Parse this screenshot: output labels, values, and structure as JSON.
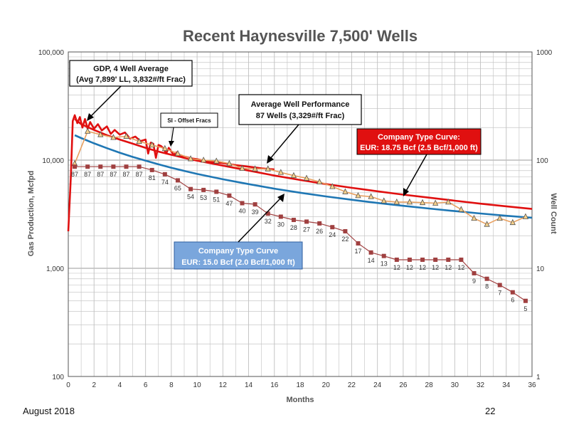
{
  "footer": {
    "date": "August 2018",
    "page": "22"
  },
  "annotations": {
    "gdp_line1": "GDP, 4 Well Average",
    "gdp_line2": "(Avg 7,899' LL, 3,832#/ft Frac)",
    "si": "SI - Offset Fracs",
    "avg_line1": "Average Well Performance",
    "avg_line2": "87 Wells (3,329#/ft Frac)",
    "tc_red_line1": "Company Type Curve:",
    "tc_red_line2": "EUR: 18.75 Bcf (2.5 Bcf/1,000 ft)",
    "tc_blue_line1": "Company Type Curve",
    "tc_blue_line2": "EUR: 15.0 Bcf (2.0 Bcf/1,000 ft)"
  },
  "colors": {
    "gdp": "#e01010",
    "type_red": "#e01010",
    "type_blue": "#1f77b4",
    "avg": "#e8a060",
    "well_count": "#a04040",
    "box_red": "#e01010",
    "box_blue": "#6f9fd8"
  },
  "chart_data": {
    "type": "line",
    "title": "Recent Haynesville 7,500' Wells",
    "xlabel": "Months",
    "ylabel": "Gas Production, Mcfpd",
    "y2label": "Well Count",
    "xlim": [
      0,
      36
    ],
    "ylim": [
      100,
      100000
    ],
    "y2lim": [
      1,
      1000
    ],
    "y_scale": "log",
    "y2_scale": "log",
    "grid": true,
    "x_ticks": [
      "0",
      "2",
      "4",
      "6",
      "8",
      "10",
      "12",
      "14",
      "16",
      "18",
      "20",
      "22",
      "24",
      "26",
      "28",
      "30",
      "32",
      "34",
      "36"
    ],
    "y_ticks": [
      "100",
      "1,000",
      "10,000",
      "100,000"
    ],
    "y2_ticks": [
      "1",
      "10",
      "100",
      "1000"
    ],
    "series": [
      {
        "name": "GDP, 4 Well Average",
        "axis": "left",
        "color": "#e01010",
        "x": [
          0,
          0.2,
          0.35,
          0.5,
          0.7,
          0.9,
          1.1,
          1.3,
          1.5,
          1.7,
          2,
          2.3,
          2.6,
          3,
          3.3,
          3.6,
          4,
          4.4,
          4.8,
          5.2,
          5.6,
          6,
          6.2,
          6.4,
          6.6,
          6.8,
          7,
          7.2,
          7.4,
          7.6,
          7.8,
          8,
          8.2,
          8.4,
          8.6,
          9,
          9.5,
          10,
          10.5,
          11,
          11.5,
          12,
          12.5,
          13,
          13.5,
          14,
          14.5,
          15,
          15.5,
          16
        ],
        "y": [
          2200,
          7000,
          23000,
          26000,
          22000,
          25000,
          20000,
          24000,
          19500,
          22500,
          19500,
          21500,
          18800,
          20500,
          17500,
          19000,
          17200,
          18000,
          15800,
          16500,
          15000,
          15500,
          11500,
          14500,
          14200,
          10500,
          13800,
          13500,
          12800,
          11500,
          13000,
          12000,
          11200,
          11800,
          10800,
          10800,
          10400,
          10200,
          9900,
          9700,
          9500,
          9400,
          9200,
          9000,
          8850,
          8700,
          8550,
          8400,
          8300,
          8200
        ]
      },
      {
        "name": "Company Type Curve: EUR: 18.75 Bcf (2.5 Bcf/1,000 ft)",
        "axis": "left",
        "color": "#e01010",
        "x": [
          0.5,
          1,
          2,
          3,
          4,
          5,
          6,
          7,
          8,
          9,
          10,
          12,
          14,
          16,
          18,
          20,
          22,
          24,
          26,
          28,
          30,
          32,
          34,
          36
        ],
        "y": [
          24000,
          21500,
          19000,
          17000,
          15500,
          14200,
          13000,
          12000,
          11200,
          10500,
          9900,
          8900,
          8000,
          7200,
          6550,
          6000,
          5550,
          5150,
          4800,
          4500,
          4220,
          3960,
          3740,
          3540
        ]
      },
      {
        "name": "Company Type Curve EUR: 15.0 Bcf (2.0 Bcf/1,000 ft)",
        "axis": "left",
        "color": "#1f77b4",
        "x": [
          0.5,
          1,
          2,
          3,
          4,
          5,
          6,
          7,
          8,
          9,
          10,
          12,
          14,
          16,
          18,
          20,
          22,
          24,
          26,
          28,
          30,
          32,
          34,
          36
        ],
        "y": [
          17000,
          16000,
          14300,
          12900,
          11700,
          10700,
          9900,
          9150,
          8500,
          7950,
          7450,
          6650,
          6000,
          5450,
          5000,
          4620,
          4300,
          4020,
          3780,
          3570,
          3380,
          3210,
          3060,
          2930
        ]
      },
      {
        "name": "Average Well Performance 87 Wells (3,329#/ft Frac)",
        "axis": "left",
        "color": "#e8a060",
        "marker": "triangle",
        "x": [
          0.5,
          1.5,
          2.5,
          3.5,
          4.5,
          5.5,
          6.5,
          7.5,
          8.5,
          9.5,
          10.5,
          11.5,
          12.5,
          13.5,
          14.5,
          15.5,
          16.5,
          17.5,
          18.5,
          19.5,
          20.5,
          21.5,
          22.5,
          23.5,
          24.5,
          25.5,
          26.5,
          27.5,
          28.5,
          29.5,
          30.5,
          31.5,
          32.5,
          33.5,
          34.5,
          35.5
        ],
        "y": [
          9300,
          18500,
          17200,
          16200,
          16600,
          14900,
          13800,
          12800,
          11500,
          10300,
          10000,
          9800,
          9300,
          8400,
          8300,
          8300,
          7700,
          7200,
          6800,
          6300,
          5700,
          5100,
          4700,
          4600,
          4200,
          4100,
          4100,
          4050,
          4000,
          4100,
          3500,
          2900,
          2550,
          2900,
          2650,
          3000
        ]
      },
      {
        "name": "Well Count",
        "axis": "right",
        "color": "#a04040",
        "marker": "square",
        "x": [
          0.5,
          1.5,
          2.5,
          3.5,
          4.5,
          5.5,
          6.5,
          7.5,
          8.5,
          9.5,
          10.5,
          11.5,
          12.5,
          13.5,
          14.5,
          15.5,
          16.5,
          17.5,
          18.5,
          19.5,
          20.5,
          21.5,
          22.5,
          23.5,
          24.5,
          25.5,
          26.5,
          27.5,
          28.5,
          29.5,
          30.5,
          31.5,
          32.5,
          33.5,
          34.5,
          35.5
        ],
        "y": [
          87,
          87,
          87,
          87,
          87,
          87,
          81,
          74,
          65,
          54,
          53,
          51,
          47,
          40,
          39,
          32,
          30,
          28,
          27,
          26,
          24,
          22,
          17,
          14,
          13,
          12,
          12,
          12,
          12,
          12,
          12,
          9,
          8,
          7,
          6,
          5
        ],
        "labels": [
          "87",
          "87",
          "87",
          "87",
          "87",
          "87",
          "81",
          "74",
          "65",
          "54",
          "53",
          "51",
          "47",
          "40",
          "39",
          "32",
          "30",
          "28",
          "27",
          "26",
          "24",
          "22",
          "17",
          "14",
          "13",
          "12",
          "12",
          "12",
          "12",
          "12",
          "12",
          "9",
          "8",
          "7",
          "6",
          "5"
        ]
      }
    ]
  }
}
